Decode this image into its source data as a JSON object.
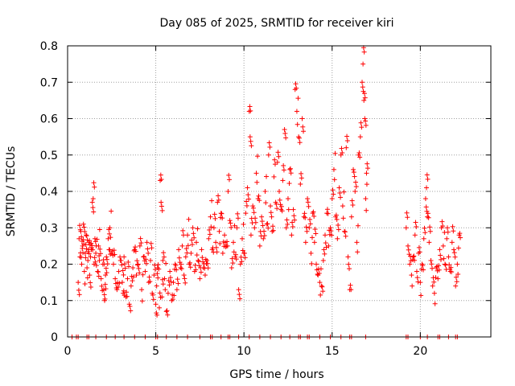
{
  "chart_data": {
    "type": "scatter",
    "title": "Day 085 of 2025, SRMTID for receiver kiri",
    "xlabel": "GPS time / hours",
    "ylabel": "SRMTID / TECUs",
    "xlim": [
      0,
      24
    ],
    "ylim": [
      0,
      0.8
    ],
    "xticks": [
      0,
      5,
      10,
      15,
      20
    ],
    "yticks": [
      0,
      0.1,
      0.2,
      0.3,
      0.4,
      0.5,
      0.6,
      0.7,
      0.8
    ],
    "xtick_labels": [
      "0",
      "5",
      "10",
      "15",
      "20"
    ],
    "ytick_labels": [
      "0",
      "0.1",
      "0.2",
      "0.3",
      "0.4",
      "0.5",
      "0.6",
      "0.7",
      "0.8"
    ],
    "grid": true,
    "marker": "+",
    "color": "#ff0000",
    "series": [
      {
        "name": "SRMTID",
        "points": [
          [
            0.6,
            0.15
          ],
          [
            0.65,
            0.27
          ],
          [
            0.7,
            0.22
          ],
          [
            0.75,
            0.29
          ],
          [
            0.8,
            0.2
          ],
          [
            0.85,
            0.25
          ],
          [
            0.9,
            0.31
          ],
          [
            0.95,
            0.18
          ],
          [
            1.0,
            0.23
          ],
          [
            1.05,
            0.28
          ],
          [
            1.1,
            0.19
          ],
          [
            1.15,
            0.21
          ],
          [
            1.2,
            0.26
          ],
          [
            1.25,
            0.17
          ],
          [
            1.3,
            0.22
          ],
          [
            1.35,
            0.24
          ],
          [
            1.4,
            0.37
          ],
          [
            1.45,
            0.38
          ],
          [
            1.5,
            0.2
          ],
          [
            1.55,
            0.27
          ],
          [
            1.6,
            0.23
          ],
          [
            1.7,
            0.18
          ],
          [
            1.75,
            0.25
          ],
          [
            1.8,
            0.21
          ],
          [
            1.9,
            0.16
          ],
          [
            2.0,
            0.2
          ],
          [
            2.05,
            0.13
          ],
          [
            2.1,
            0.1
          ],
          [
            2.15,
            0.17
          ],
          [
            2.2,
            0.22
          ],
          [
            2.3,
            0.27
          ],
          [
            2.35,
            0.24
          ],
          [
            2.4,
            0.3
          ],
          [
            2.5,
            0.23
          ],
          [
            2.6,
            0.2
          ],
          [
            2.7,
            0.16
          ],
          [
            2.8,
            0.13
          ],
          [
            2.9,
            0.18
          ],
          [
            3.0,
            0.21
          ],
          [
            3.1,
            0.15
          ],
          [
            3.15,
            0.12
          ],
          [
            3.2,
            0.22
          ],
          [
            3.3,
            0.11
          ],
          [
            3.4,
            0.16
          ],
          [
            3.5,
            0.09
          ],
          [
            3.6,
            0.14
          ],
          [
            3.7,
            0.19
          ],
          [
            3.8,
            0.24
          ],
          [
            3.9,
            0.17
          ],
          [
            4.0,
            0.2
          ],
          [
            4.1,
            0.25
          ],
          [
            4.2,
            0.13
          ],
          [
            4.3,
            0.22
          ],
          [
            4.4,
            0.18
          ],
          [
            4.5,
            0.26
          ],
          [
            4.6,
            0.15
          ],
          [
            4.7,
            0.21
          ],
          [
            4.8,
            0.12
          ],
          [
            4.9,
            0.17
          ],
          [
            5.0,
            0.09
          ],
          [
            5.05,
            0.14
          ],
          [
            5.1,
            0.19
          ],
          [
            5.2,
            0.08
          ],
          [
            5.25,
            0.43
          ],
          [
            5.3,
            0.37
          ],
          [
            5.35,
            0.11
          ],
          [
            5.4,
            0.21
          ],
          [
            5.5,
            0.16
          ],
          [
            5.6,
            0.07
          ],
          [
            5.7,
            0.12
          ],
          [
            5.8,
            0.18
          ],
          [
            5.9,
            0.1
          ],
          [
            6.0,
            0.15
          ],
          [
            6.1,
            0.2
          ],
          [
            6.2,
            0.13
          ],
          [
            6.3,
            0.24
          ],
          [
            6.4,
            0.19
          ],
          [
            6.5,
            0.25
          ],
          [
            6.6,
            0.17
          ],
          [
            6.7,
            0.22
          ],
          [
            6.8,
            0.28
          ],
          [
            6.9,
            0.2
          ],
          [
            7.0,
            0.23
          ],
          [
            7.1,
            0.3
          ],
          [
            7.2,
            0.18
          ],
          [
            7.3,
            0.26
          ],
          [
            7.4,
            0.21
          ],
          [
            7.5,
            0.16
          ],
          [
            7.6,
            0.24
          ],
          [
            7.7,
            0.19
          ],
          [
            7.8,
            0.17
          ],
          [
            7.9,
            0.21
          ],
          [
            8.0,
            0.27
          ],
          [
            8.1,
            0.33
          ],
          [
            8.2,
            0.24
          ],
          [
            8.3,
            0.3
          ],
          [
            8.4,
            0.26
          ],
          [
            8.5,
            0.37
          ],
          [
            8.6,
            0.29
          ],
          [
            8.7,
            0.34
          ],
          [
            8.8,
            0.23
          ],
          [
            8.9,
            0.28
          ],
          [
            9.0,
            0.25
          ],
          [
            9.1,
            0.4
          ],
          [
            9.2,
            0.32
          ],
          [
            9.3,
            0.19
          ],
          [
            9.4,
            0.26
          ],
          [
            9.5,
            0.22
          ],
          [
            9.6,
            0.3
          ],
          [
            9.7,
            0.13
          ],
          [
            9.8,
            0.2
          ],
          [
            9.9,
            0.27
          ],
          [
            10.0,
            0.23
          ],
          [
            10.1,
            0.34
          ],
          [
            10.2,
            0.41
          ],
          [
            10.3,
            0.62
          ],
          [
            10.35,
            0.55
          ],
          [
            10.4,
            0.28
          ],
          [
            10.5,
            0.36
          ],
          [
            10.6,
            0.3
          ],
          [
            10.7,
            0.45
          ],
          [
            10.8,
            0.38
          ],
          [
            10.9,
            0.25
          ],
          [
            11.0,
            0.33
          ],
          [
            11.1,
            0.27
          ],
          [
            11.2,
            0.4
          ],
          [
            11.3,
            0.31
          ],
          [
            11.4,
            0.5
          ],
          [
            11.5,
            0.36
          ],
          [
            11.6,
            0.29
          ],
          [
            11.7,
            0.44
          ],
          [
            11.8,
            0.37
          ],
          [
            11.9,
            0.48
          ],
          [
            12.0,
            0.4
          ],
          [
            12.1,
            0.35
          ],
          [
            12.2,
            0.43
          ],
          [
            12.3,
            0.57
          ],
          [
            12.4,
            0.3
          ],
          [
            12.5,
            0.38
          ],
          [
            12.6,
            0.46
          ],
          [
            12.7,
            0.28
          ],
          [
            12.8,
            0.35
          ],
          [
            12.9,
            0.68
          ],
          [
            13.0,
            0.62
          ],
          [
            13.1,
            0.55
          ],
          [
            13.2,
            0.42
          ],
          [
            13.3,
            0.6
          ],
          [
            13.4,
            0.33
          ],
          [
            13.5,
            0.26
          ],
          [
            13.6,
            0.38
          ],
          [
            13.7,
            0.3
          ],
          [
            13.8,
            0.23
          ],
          [
            13.9,
            0.34
          ],
          [
            14.0,
            0.26
          ],
          [
            14.1,
            0.2
          ],
          [
            14.2,
            0.17
          ],
          [
            14.3,
            0.15
          ],
          [
            14.4,
            0.14
          ],
          [
            14.5,
            0.21
          ],
          [
            14.6,
            0.28
          ],
          [
            14.7,
            0.34
          ],
          [
            14.8,
            0.25
          ],
          [
            14.9,
            0.3
          ],
          [
            15.0,
            0.38
          ],
          [
            15.1,
            0.46
          ],
          [
            15.2,
            0.33
          ],
          [
            15.3,
            0.27
          ],
          [
            15.4,
            0.41
          ],
          [
            15.5,
            0.5
          ],
          [
            15.6,
            0.36
          ],
          [
            15.7,
            0.29
          ],
          [
            15.8,
            0.52
          ],
          [
            15.9,
            0.22
          ],
          [
            16.0,
            0.13
          ],
          [
            16.1,
            0.33
          ],
          [
            16.2,
            0.46
          ],
          [
            16.3,
            0.4
          ],
          [
            16.4,
            0.26
          ],
          [
            16.5,
            0.5
          ],
          [
            16.6,
            0.55
          ],
          [
            16.7,
            0.7
          ],
          [
            16.75,
            0.75
          ],
          [
            16.8,
            0.65
          ],
          [
            16.85,
            0.6
          ],
          [
            16.9,
            0.38
          ],
          [
            16.95,
            0.45
          ],
          [
            19.2,
            0.3
          ],
          [
            19.3,
            0.25
          ],
          [
            19.4,
            0.2
          ],
          [
            19.5,
            0.17
          ],
          [
            19.6,
            0.22
          ],
          [
            19.7,
            0.28
          ],
          [
            19.8,
            0.18
          ],
          [
            19.9,
            0.23
          ],
          [
            20.0,
            0.15
          ],
          [
            20.1,
            0.2
          ],
          [
            20.2,
            0.27
          ],
          [
            20.3,
            0.38
          ],
          [
            20.35,
            0.41
          ],
          [
            20.4,
            0.33
          ],
          [
            20.5,
            0.26
          ],
          [
            20.6,
            0.21
          ],
          [
            20.7,
            0.14
          ],
          [
            20.8,
            0.12
          ],
          [
            20.9,
            0.19
          ],
          [
            21.0,
            0.16
          ],
          [
            21.1,
            0.24
          ],
          [
            21.2,
            0.3
          ],
          [
            21.3,
            0.25
          ],
          [
            21.4,
            0.2
          ],
          [
            21.5,
            0.27
          ],
          [
            21.6,
            0.22
          ],
          [
            21.7,
            0.18
          ],
          [
            21.8,
            0.26
          ],
          [
            21.9,
            0.24
          ],
          [
            22.0,
            0.14
          ],
          [
            22.1,
            0.2
          ],
          [
            22.2,
            0.28
          ]
        ]
      }
    ],
    "baseline_points": [
      [
        0.25,
        0
      ],
      [
        0.5,
        0
      ],
      [
        0.6,
        0
      ],
      [
        1.1,
        0
      ],
      [
        1.2,
        0
      ],
      [
        1.6,
        0
      ],
      [
        2.2,
        0
      ],
      [
        2.7,
        0
      ],
      [
        3.2,
        0
      ],
      [
        3.8,
        0
      ],
      [
        4.4,
        0
      ],
      [
        5.0,
        0
      ],
      [
        5.1,
        0
      ],
      [
        5.6,
        0
      ],
      [
        6.2,
        0
      ],
      [
        6.8,
        0
      ],
      [
        7.5,
        0
      ],
      [
        8.1,
        0
      ],
      [
        8.2,
        0
      ],
      [
        8.7,
        0
      ],
      [
        9.1,
        0
      ],
      [
        9.2,
        0
      ],
      [
        9.7,
        0
      ],
      [
        10.3,
        0
      ],
      [
        10.9,
        0
      ],
      [
        11.5,
        0
      ],
      [
        12.1,
        0
      ],
      [
        12.6,
        0
      ],
      [
        13.1,
        0
      ],
      [
        13.2,
        0
      ],
      [
        13.6,
        0
      ],
      [
        13.7,
        0
      ],
      [
        14.3,
        0
      ],
      [
        14.9,
        0
      ],
      [
        15.5,
        0
      ],
      [
        16.0,
        0
      ],
      [
        16.1,
        0
      ],
      [
        16.9,
        0
      ],
      [
        19.2,
        0
      ],
      [
        19.3,
        0
      ],
      [
        20.0,
        0
      ],
      [
        20.4,
        0
      ],
      [
        21.0,
        0
      ],
      [
        21.1,
        0
      ],
      [
        21.6,
        0
      ],
      [
        22.0,
        0
      ],
      [
        22.1,
        0
      ]
    ]
  }
}
